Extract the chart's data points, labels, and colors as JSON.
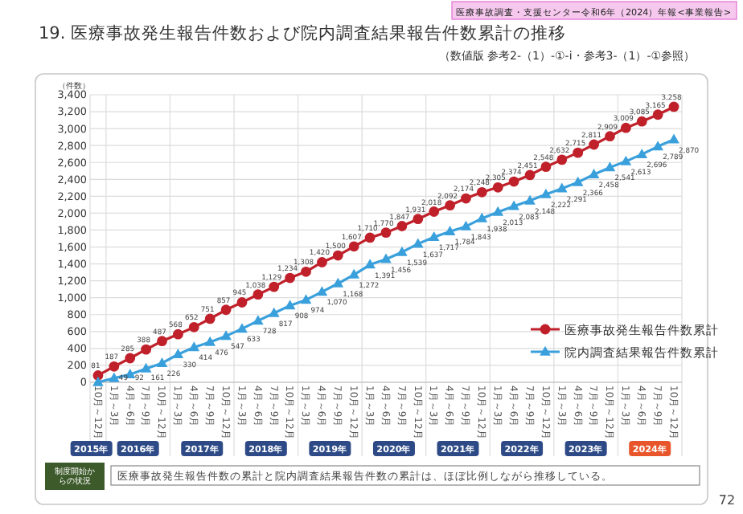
{
  "chart_data": {
    "type": "line",
    "title": "19. 医療事故発生報告件数および院内調査結果報告件数累計の推移",
    "subtitle": "（数値版 参考2-（1）-①-i・参考3-（1）-①参照）",
    "ylabel": "（件数）",
    "categories": [
      "10月～12月",
      "1月～3月",
      "4月～6月",
      "7月～9月",
      "10月～12月",
      "1月～3月",
      "4月～6月",
      "7月～9月",
      "10月～12月",
      "1月～3月",
      "4月～6月",
      "7月～9月",
      "10月～12月",
      "1月～3月",
      "4月～6月",
      "7月～9月",
      "10月～12月",
      "1月～3月",
      "4月～6月",
      "7月～9月",
      "10月～12月",
      "1月～3月",
      "4月～6月",
      "7月～9月",
      "10月～12月",
      "1月～3月",
      "4月～6月",
      "7月～9月",
      "10月～12月",
      "1月～3月",
      "4月～6月",
      "7月～9月",
      "10月～12月",
      "1月～3月",
      "4月～6月",
      "7月～9月",
      "10月～12月"
    ],
    "series": [
      {
        "name": "医療事故発生報告件数累計",
        "color": "#c0202a",
        "marker": "circle",
        "values": [
          81,
          187,
          285,
          388,
          487,
          568,
          652,
          751,
          857,
          945,
          1038,
          1129,
          1234,
          1308,
          1420,
          1500,
          1607,
          1710,
          1770,
          1847,
          1931,
          2018,
          2092,
          2174,
          2248,
          2305,
          2374,
          2451,
          2548,
          2632,
          2715,
          2811,
          2909,
          3009,
          3085,
          3165,
          3258
        ],
        "value_labels": [
          "81",
          "187",
          "285",
          "388",
          "487",
          "568",
          "652",
          "751",
          "857",
          "945",
          "1,038",
          "1,129",
          "1,234",
          "1,308",
          "1,420",
          "1,500",
          "1,607",
          "1,710",
          "1,770",
          "1,847",
          "1,931",
          "2,018",
          "2,092",
          "2,174",
          "2,248",
          "2,305",
          "2,374",
          "2,451",
          "2,548",
          "2,632",
          "2,715",
          "2,811",
          "2,909",
          "3,009",
          "3,085",
          "3,165",
          "3,258"
        ]
      },
      {
        "name": "院内調査結果報告件数累計",
        "color": "#3aa0dc",
        "marker": "triangle",
        "values": [
          0,
          49,
          92,
          161,
          226,
          330,
          414,
          476,
          547,
          633,
          728,
          817,
          908,
          974,
          1070,
          1168,
          1272,
          1391,
          1456,
          1539,
          1637,
          1717,
          1784,
          1843,
          1938,
          2013,
          2083,
          2148,
          2222,
          2291,
          2366,
          2458,
          2541,
          2613,
          2696,
          2789,
          2870
        ],
        "value_labels": [
          null,
          "49",
          "92",
          "161",
          "226",
          "330",
          "414",
          "476",
          "547",
          "633",
          "728",
          "817",
          "908",
          "974",
          "1,070",
          "1,168",
          "1,272",
          "1,391",
          "1,456",
          "1,539",
          "1,637",
          "1,717",
          "1,784",
          "1,843",
          "1,938",
          "2,013",
          "2,083",
          "2,148",
          "2,222",
          "2,291",
          "2,366",
          "2,458",
          "2,541",
          "2,613",
          "2,696",
          "2,789",
          "2,870"
        ]
      }
    ],
    "ylim": [
      0,
      3400
    ],
    "yticks": [
      {
        "value": 0,
        "label": "0"
      },
      {
        "value": 200,
        "label": "200"
      },
      {
        "value": 400,
        "label": "400"
      },
      {
        "value": 600,
        "label": "600"
      },
      {
        "value": 800,
        "label": "800"
      },
      {
        "value": 1000,
        "label": "1,000"
      },
      {
        "value": 1200,
        "label": "1,200"
      },
      {
        "value": 1400,
        "label": "1,400"
      },
      {
        "value": 1600,
        "label": "1,600"
      },
      {
        "value": 1800,
        "label": "1,800"
      },
      {
        "value": 2000,
        "label": "2,000"
      },
      {
        "value": 2200,
        "label": "2,200"
      },
      {
        "value": 2400,
        "label": "2,400"
      },
      {
        "value": 2600,
        "label": "2,600"
      },
      {
        "value": 2800,
        "label": "2,800"
      },
      {
        "value": 3000,
        "label": "3,000"
      },
      {
        "value": 3200,
        "label": "3,200"
      },
      {
        "value": 3400,
        "label": "3,400"
      }
    ],
    "grid": true,
    "legend": "bottom right",
    "line_style": "solid",
    "annotations": [
      "医療事故調査・支援センター令和6年（2024）年報<事業報告>",
      "制度開始からの状況",
      "医療事故発生報告件数の累計と院内調査結果報告件数の累計は、ほぼ比例しながら推移している。",
      "72",
      "2015年",
      "2016年",
      "2017年",
      "2018年",
      "2019年",
      "2020年",
      "2021年",
      "2022年",
      "2023年",
      "2024年"
    ]
  }
}
